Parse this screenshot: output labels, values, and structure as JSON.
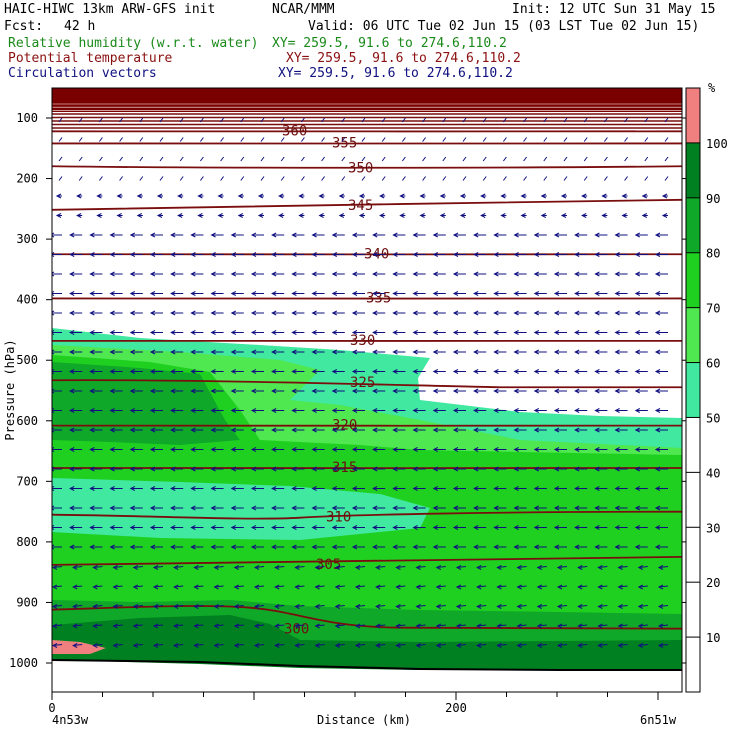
{
  "header": {
    "title": "HAIC-HIWC 13km ARW-GFS init",
    "org": "NCAR/MMM",
    "init": "Init: 12 UTC Sun 31 May 15",
    "fcst_label": "Fcst:",
    "fcst_value": "42 h",
    "valid": "Valid: 06 UTC Tue 02 Jun 15 (03 LST Tue 02 Jun 15)",
    "fields": [
      {
        "name": "Relative humidity (w.r.t. water)",
        "xy": "XY= 259.5, 91.6 to 274.6,110.2",
        "color": "#1a8a1a"
      },
      {
        "name": "Potential temperature",
        "xy": "XY= 259.5, 91.6 to 274.6,110.2",
        "color": "#8b1010"
      },
      {
        "name": "Circulation vectors",
        "xy": "XY= 259.5, 91.6 to 274.6,110.2",
        "color": "#101080"
      }
    ]
  },
  "chart_data": {
    "type": "heatmap",
    "title": "Relative humidity (w.r.t. water), Potential temperature, Circulation vectors",
    "xlabel": "Distance (km)",
    "ylabel": "Pressure (hPa)",
    "x_ticks": [
      "0",
      "200"
    ],
    "x_range": [
      0,
      312
    ],
    "y_range": [
      1050,
      60
    ],
    "y_ticks": [
      "100",
      "200",
      "300",
      "400",
      "500",
      "600",
      "700",
      "800",
      "900",
      "1000"
    ],
    "start_label": "4n53w",
    "end_label": "6n51w",
    "colorbar": {
      "unit": "%",
      "ticks": [
        "10",
        "20",
        "30",
        "40",
        "50",
        "60",
        "70",
        "80",
        "90",
        "100"
      ],
      "levels": [
        {
          "from": 50,
          "to": 60,
          "color": "#40e8a0"
        },
        {
          "from": 60,
          "to": 70,
          "color": "#50e850"
        },
        {
          "from": 70,
          "to": 80,
          "color": "#20d020"
        },
        {
          "from": 80,
          "to": 90,
          "color": "#10a828"
        },
        {
          "from": 90,
          "to": 100,
          "color": "#008020"
        },
        {
          "from": 100,
          "to": 110,
          "color": "#f08080"
        }
      ]
    },
    "theta_contours": [
      {
        "label": "360",
        "pressure": 122
      },
      {
        "label": "355",
        "pressure": 142
      },
      {
        "label": "350",
        "pressure": 183
      },
      {
        "label": "345",
        "pressure": 245
      },
      {
        "label": "340",
        "pressure": 325
      },
      {
        "label": "335",
        "pressure": 398
      },
      {
        "label": "330",
        "pressure": 468
      },
      {
        "label": "325",
        "pressure": 538
      },
      {
        "label": "320",
        "pressure": 608
      },
      {
        "label": "315",
        "pressure": 678
      },
      {
        "label": "310",
        "pressure": 760
      },
      {
        "label": "305",
        "pressure": 838
      },
      {
        "label": "300",
        "pressure": 945
      }
    ],
    "colors": {
      "contour": "#7a0e0e",
      "vector": "#101080",
      "top_band": "#7a0000"
    }
  }
}
